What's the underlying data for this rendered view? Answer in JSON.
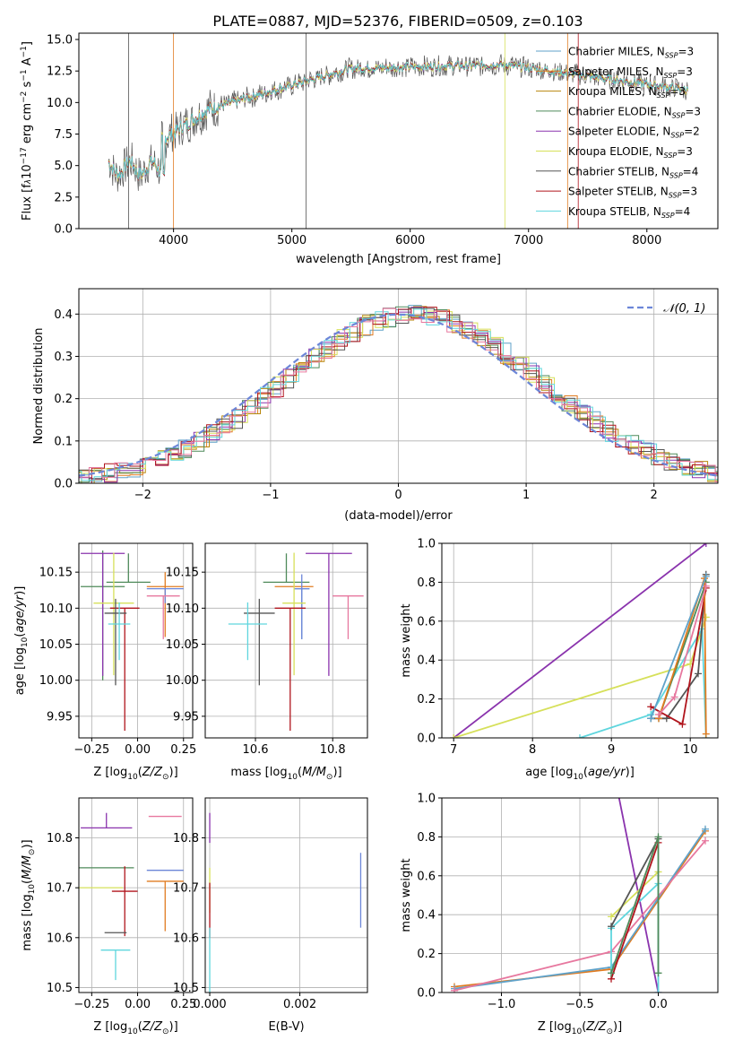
{
  "figure_title": "PLATE=0887, MJD=52376, FIBERID=0509, z=0.103",
  "colors": {
    "c1": "#5fa2c9",
    "c2": "#e07b20",
    "c3": "#b8870b",
    "c4": "#4f8a5a",
    "c5": "#8a33ad",
    "c6": "#d6e05a",
    "c7": "#555555",
    "c8": "#b0141c",
    "c9": "#5fd6de",
    "pink": "#e7789f",
    "blue": "#6c86d8",
    "green2": "#2d8a4a"
  },
  "chart_data": [
    {
      "id": "spectrum",
      "type": "line",
      "xlabel": "wavelength [Angstrom, rest frame]",
      "ylabel": "Flux [f",
      "xlim": [
        3200,
        8600
      ],
      "ylim": [
        0,
        15.5
      ],
      "xticks": [
        "4000",
        "5000",
        "6000",
        "7000",
        "8000"
      ],
      "yticks": [
        "0.0",
        "2.5",
        "5.0",
        "7.5",
        "10.0",
        "12.5",
        "15.0"
      ],
      "x_range_data": [
        3450,
        8350
      ],
      "series": [
        {
          "name": "Chabrier MILES, N",
          "ssp": "=3"
        },
        {
          "name": "Salpeter MILES, N",
          "ssp": "=3"
        },
        {
          "name": "Kroupa MILES, N",
          "ssp": "=3"
        },
        {
          "name": "Chabrier ELODIE, N",
          "ssp": "=3"
        },
        {
          "name": "Salpeter ELODIE, N",
          "ssp": "=2"
        },
        {
          "name": "Kroupa ELODIE, N",
          "ssp": "=3"
        },
        {
          "name": "Chabrier STELIB, N",
          "ssp": "=4"
        },
        {
          "name": "Salpeter STELIB, N",
          "ssp": "=3"
        },
        {
          "name": "Kroupa STELIB, N",
          "ssp": "=4"
        }
      ],
      "legend_position": "right"
    },
    {
      "id": "residual-histogram",
      "type": "bar",
      "xlabel": "(data-model)/error",
      "ylabel": "Normed distribution",
      "xlim": [
        -2.5,
        2.5
      ],
      "ylim": [
        0,
        0.46
      ],
      "xticks": [
        "−2",
        "−1",
        "0",
        "1",
        "2"
      ],
      "yticks": [
        "0.0",
        "0.1",
        "0.2",
        "0.3",
        "0.4"
      ],
      "legend": "𝒩(0, 1)",
      "legend_position": "top-right",
      "grid": true
    },
    {
      "id": "age-vs-Z",
      "type": "scatter",
      "xlabel": "Z [log",
      "ylabel": "age  [log",
      "xlim": [
        -0.32,
        0.3
      ],
      "ylim": [
        9.92,
        10.19
      ],
      "xticks": [
        "−0.25",
        "0.00",
        "0.25"
      ],
      "yticks": [
        "9.95",
        "10.00",
        "10.05",
        "10.10",
        "10.15"
      ],
      "points": [
        {
          "x": -0.19,
          "xe": 0.12,
          "y": 10.13,
          "ye": [
            0.13,
            0.05
          ],
          "c": "c4"
        },
        {
          "x": -0.19,
          "xe": 0.12,
          "y": 10.176,
          "ye": [
            0.17,
            0.0
          ],
          "c": "c5"
        },
        {
          "x": -0.05,
          "xe": 0.12,
          "y": 10.136,
          "ye": [
            0.0,
            0.04
          ],
          "c": "c4"
        },
        {
          "x": -0.13,
          "xe": 0.11,
          "y": 10.107,
          "ye": [
            0.1,
            0.07
          ],
          "c": "c6"
        },
        {
          "x": -0.07,
          "xe": 0.08,
          "y": 10.1,
          "ye": [
            0.17,
            0.0
          ],
          "c": "c8"
        },
        {
          "x": -0.12,
          "xe": 0.06,
          "y": 10.093,
          "ye": [
            0.1,
            0.02
          ],
          "c": "c7"
        },
        {
          "x": -0.1,
          "xe": 0.06,
          "y": 10.078,
          "ye": [
            0.05,
            0.03
          ],
          "c": "c9"
        },
        {
          "x": 0.15,
          "xe": 0.1,
          "y": 10.13,
          "ye": [
            0.07,
            0.02
          ],
          "c": "c2"
        },
        {
          "x": 0.15,
          "xe": 0.1,
          "y": 10.127,
          "ye": [
            0.02,
            0.0
          ],
          "c": "blue"
        },
        {
          "x": 0.14,
          "xe": 0.09,
          "y": 10.117,
          "ye": [
            0.06,
            0.0
          ],
          "c": "pink"
        }
      ]
    },
    {
      "id": "age-vs-mass",
      "type": "scatter",
      "xlabel": "mass [log",
      "ylabel": "",
      "xlim": [
        10.47,
        10.89
      ],
      "ylim": [
        9.92,
        10.19
      ],
      "xticks": [
        "10.6",
        "10.8"
      ],
      "yticks": [
        "9.95",
        "10.00",
        "10.05",
        "10.10",
        "10.15"
      ],
      "points": [
        {
          "x": 10.79,
          "xe": 0.06,
          "y": 10.176,
          "ye": [
            0.17,
            0.0
          ],
          "c": "c5"
        },
        {
          "x": 10.68,
          "xe": 0.06,
          "y": 10.136,
          "ye": [
            0.0,
            0.04
          ],
          "c": "c4"
        },
        {
          "x": 10.7,
          "xe": 0.05,
          "y": 10.13,
          "ye": [
            0.0,
            0.0
          ],
          "c": "c2"
        },
        {
          "x": 10.72,
          "xe": 0.02,
          "y": 10.127,
          "ye": [
            0.07,
            0.0
          ],
          "c": "c1"
        },
        {
          "x": 10.72,
          "xe": 0.02,
          "y": 10.127,
          "ye": [
            0.07,
            0.02
          ],
          "c": "blue"
        },
        {
          "x": 10.84,
          "xe": 0.04,
          "y": 10.117,
          "ye": [
            0.06,
            0.0
          ],
          "c": "pink"
        },
        {
          "x": 10.7,
          "xe": 0.03,
          "y": 10.107,
          "ye": [
            0.1,
            0.07
          ],
          "c": "c6"
        },
        {
          "x": 10.69,
          "xe": 0.04,
          "y": 10.1,
          "ye": [
            0.17,
            0.0
          ],
          "c": "c8"
        },
        {
          "x": 10.61,
          "xe": 0.04,
          "y": 10.093,
          "ye": [
            0.1,
            0.02
          ],
          "c": "c7"
        },
        {
          "x": 10.58,
          "xe": 0.05,
          "y": 10.078,
          "ye": [
            0.05,
            0.03
          ],
          "c": "c9"
        }
      ]
    },
    {
      "id": "mass-weight-vs-age",
      "type": "line",
      "xlabel": "age  [log",
      "ylabel": "mass weight",
      "xlim": [
        6.85,
        10.35
      ],
      "ylim": [
        0,
        1
      ],
      "xticks": [
        "7",
        "8",
        "9",
        "10"
      ],
      "yticks": [
        "0.0",
        "0.2",
        "0.4",
        "0.6",
        "0.8",
        "1.0"
      ],
      "grid": true
    },
    {
      "id": "mass-vs-Z",
      "type": "scatter",
      "xlabel": "Z [log",
      "ylabel": "mass [log",
      "xlim": [
        -0.32,
        0.3
      ],
      "ylim": [
        10.49,
        10.88
      ],
      "xticks": [
        "−0.25",
        "0.00",
        "0.25"
      ],
      "yticks": [
        "10.5",
        "10.6",
        "10.7",
        "10.8"
      ],
      "points": [
        {
          "x": -0.17,
          "xe": 0.14,
          "y": 10.82,
          "ye": [
            0.0,
            0.03
          ],
          "c": "c5"
        },
        {
          "x": -0.17,
          "xe": 0.15,
          "y": 10.74,
          "ye": [
            0.0,
            0.0
          ],
          "c": "c4"
        },
        {
          "x": -0.2,
          "xe": 0.12,
          "y": 10.7,
          "ye": [
            0.0,
            0.0
          ],
          "c": "c6"
        },
        {
          "x": -0.07,
          "xe": 0.07,
          "y": 10.693,
          "ye": [
            0.09,
            0.05
          ],
          "c": "c8"
        },
        {
          "x": -0.12,
          "xe": 0.06,
          "y": 10.61,
          "ye": [
            0.0,
            0.0
          ],
          "c": "c7"
        },
        {
          "x": -0.12,
          "xe": 0.08,
          "y": 10.575,
          "ye": [
            0.06,
            0.0
          ],
          "c": "c9"
        },
        {
          "x": 0.15,
          "xe": 0.1,
          "y": 10.735,
          "ye": [
            0.0,
            0.0
          ],
          "c": "blue"
        },
        {
          "x": 0.15,
          "xe": 0.1,
          "y": 10.713,
          "ye": [
            0.1,
            0.0
          ],
          "c": "c2"
        },
        {
          "x": 0.15,
          "xe": 0.09,
          "y": 10.843,
          "ye": [
            0.0,
            0.0
          ],
          "c": "pink"
        }
      ]
    },
    {
      "id": "mass-vs-EBV",
      "type": "scatter",
      "xlabel": "E(B-V)",
      "ylabel": "",
      "xlim": [
        -0.0001,
        0.0035
      ],
      "ylim": [
        10.49,
        10.88
      ],
      "xticks": [
        "0.000",
        "0.002"
      ],
      "yticks": [
        "10.5",
        "10.6",
        "10.7",
        "10.8"
      ],
      "points": [
        {
          "x": 0.0,
          "y": 10.82,
          "ye": [
            0.03,
            0.03
          ],
          "c": "c5"
        },
        {
          "x": 0.0,
          "y": 10.7,
          "ye": [
            0.05,
            0.04
          ],
          "c": "c6"
        },
        {
          "x": 0.0,
          "y": 10.67,
          "ye": [
            0.07,
            0.04
          ],
          "c": "c8"
        },
        {
          "x": 0.0,
          "y": 10.56,
          "ye": [
            0.07,
            0.06
          ],
          "c": "c9"
        },
        {
          "x": 0.00335,
          "y": 10.7,
          "ye": [
            0.08,
            0.07
          ],
          "c": "blue"
        }
      ]
    },
    {
      "id": "mass-weight-vs-Z",
      "type": "line",
      "xlabel": "Z [log",
      "ylabel": "mass weight",
      "xlim": [
        -1.38,
        0.38
      ],
      "ylim": [
        0,
        1
      ],
      "xticks": [
        "−1.0",
        "−0.5",
        "0.0"
      ],
      "yticks": [
        "0.0",
        "0.2",
        "0.4",
        "0.6",
        "0.8",
        "1.0"
      ],
      "grid": true
    }
  ]
}
